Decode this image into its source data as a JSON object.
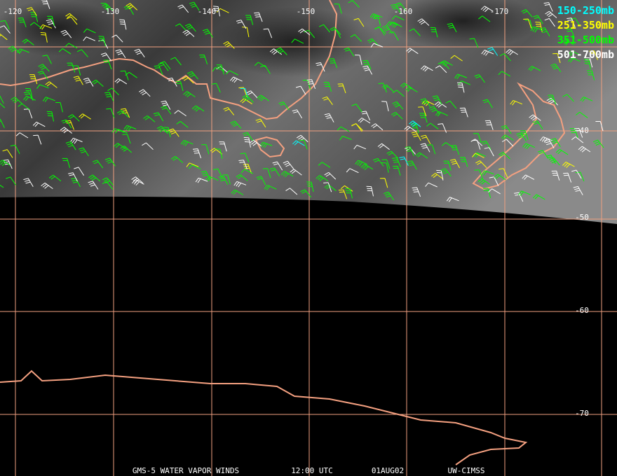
{
  "map": {
    "longitude_labels": [
      "-120",
      "-130",
      "-140",
      "-150",
      "-160",
      "-170"
    ],
    "latitude_labels": [
      "-40",
      "-50",
      "-60",
      "-70"
    ],
    "legend": [
      {
        "label": "150-250mb",
        "color": "#00ffff"
      },
      {
        "label": "251-350mb",
        "color": "#ffff00"
      },
      {
        "label": "351-500mb",
        "color": "#00ff00"
      },
      {
        "label": "501-700mb",
        "color": "#ffffff"
      }
    ],
    "footer": [
      "GMS-5 WATER VAPOR WINDS",
      "12:00 UTC",
      "01AUG02",
      "UW-CIMSS"
    ]
  }
}
